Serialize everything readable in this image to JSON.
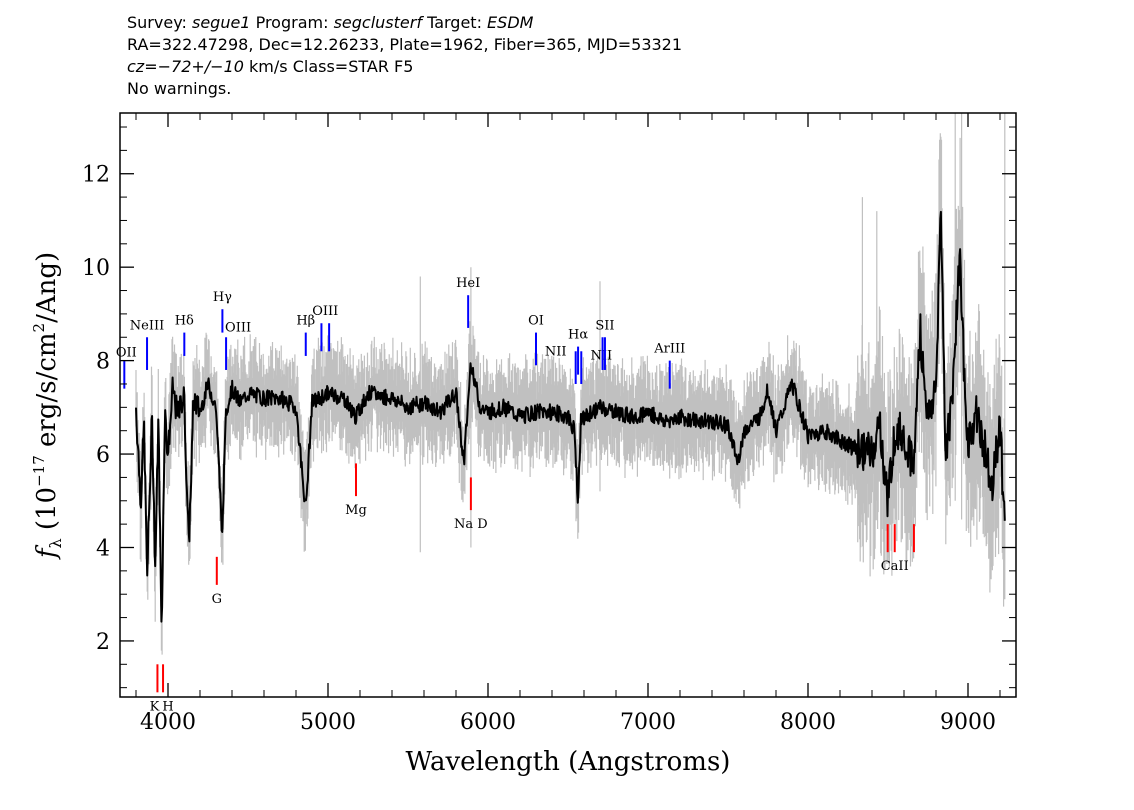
{
  "header": {
    "survey_label": "Survey:",
    "survey": "segue1",
    "program_label": "Program:",
    "program": "segclusterf",
    "target_label": "Target:",
    "target": "ESDM",
    "line2": "RA=322.47298, Dec=12.26233, Plate=1962, Fiber=365, MJD=53321",
    "cz_value": "cz=−72+/−10",
    "cz_rest": "km/s Class=STAR F5",
    "warnings": "No warnings."
  },
  "chart_data": {
    "type": "line",
    "xlabel": "Wavelength (Angstroms)",
    "ylabel": "f_λ (10^-17 erg/s/cm^2/Ang)",
    "xlim": [
      3700,
      9300
    ],
    "ylim": [
      0.8,
      13.3
    ],
    "xticks": [
      4000,
      5000,
      6000,
      7000,
      8000,
      9000
    ],
    "yticks": [
      2,
      4,
      6,
      8,
      10,
      12
    ],
    "colors": {
      "flux": "#000000",
      "error_band": "#c0c0c0",
      "emission": "#0000ff",
      "absorption": "#ff0000"
    },
    "series": [
      {
        "x": [
          3800,
          3830,
          3850,
          3870,
          3900,
          3920,
          3940,
          3960,
          3980,
          4000,
          4030,
          4060,
          4100,
          4130,
          4160,
          4200,
          4250,
          4300,
          4340,
          4360,
          4400,
          4450,
          4500,
          4600,
          4700,
          4800,
          4861,
          4900,
          5000,
          5100,
          5175,
          5250,
          5400,
          5500,
          5600,
          5700,
          5800,
          5850,
          5893,
          5950,
          6000,
          6100,
          6200,
          6300,
          6400,
          6500,
          6540,
          6563,
          6580,
          6650,
          6700,
          6800,
          6900,
          7000,
          7100,
          7200,
          7300,
          7400,
          7500,
          7560,
          7600,
          7700,
          7750,
          7800,
          7900,
          8000,
          8100,
          8200,
          8300,
          8400,
          8450,
          8498,
          8542,
          8600,
          8662,
          8700,
          8750,
          8800,
          8830,
          8860,
          8900,
          8950,
          8980,
          9000,
          9050,
          9100,
          9150,
          9200,
          9230
        ],
        "y": [
          7.0,
          5.0,
          6.6,
          3.4,
          6.8,
          3.6,
          6.7,
          2.2,
          6.9,
          6.0,
          7.4,
          6.8,
          7.3,
          4.0,
          7.2,
          6.9,
          7.5,
          7.0,
          4.2,
          6.9,
          7.4,
          7.1,
          7.3,
          7.2,
          7.2,
          7.0,
          4.8,
          7.1,
          7.3,
          7.2,
          6.8,
          7.3,
          7.2,
          7.0,
          7.1,
          6.9,
          7.3,
          5.8,
          8.0,
          7.0,
          6.9,
          7.0,
          6.8,
          6.9,
          6.9,
          6.8,
          6.5,
          5.0,
          6.7,
          6.9,
          7.0,
          6.9,
          6.8,
          6.9,
          6.7,
          6.8,
          6.7,
          6.7,
          6.6,
          5.8,
          6.5,
          6.8,
          7.4,
          6.5,
          7.5,
          6.4,
          6.5,
          6.3,
          6.1,
          6.0,
          6.6,
          5.0,
          6.5,
          6.4,
          5.7,
          8.7,
          6.7,
          7.4,
          11.4,
          6.0,
          7.2,
          10.4,
          7.2,
          6.2,
          6.9,
          6.2,
          5.4,
          6.6,
          4.5
        ]
      }
    ],
    "lines": [
      {
        "label": "OII",
        "wl": 3727,
        "y1": 7.4,
        "y2": 8.0,
        "kind": "emission"
      },
      {
        "label": "NeIII",
        "wl": 3869,
        "y1": 7.8,
        "y2": 8.5,
        "kind": "emission"
      },
      {
        "label": "Hδ",
        "wl": 4102,
        "y1": 8.1,
        "y2": 8.6,
        "kind": "emission"
      },
      {
        "label": "Hγ",
        "wl": 4340,
        "y1": 8.6,
        "y2": 9.1,
        "kind": "emission"
      },
      {
        "label": "OIII",
        "wl": 4363,
        "y1": 7.8,
        "y2": 8.5,
        "kind": "emission"
      },
      {
        "label": "Hβ",
        "wl": 4861,
        "y1": 8.1,
        "y2": 8.6,
        "kind": "emission"
      },
      {
        "label": "OIII",
        "wl": 4959,
        "y1": 8.2,
        "y2": 8.8,
        "kind": "emission"
      },
      {
        "label": "OIII",
        "wl": 5007,
        "y1": 8.2,
        "y2": 8.8,
        "kind": "emission"
      },
      {
        "label": "HeI",
        "wl": 5876,
        "y1": 8.7,
        "y2": 9.4,
        "kind": "emission"
      },
      {
        "label": "OI",
        "wl": 6300,
        "y1": 7.9,
        "y2": 8.6,
        "kind": "emission"
      },
      {
        "label": "NII",
        "wl": 6548,
        "y1": 7.5,
        "y2": 8.2,
        "kind": "emission"
      },
      {
        "label": "Hα",
        "wl": 6563,
        "y1": 7.7,
        "y2": 8.3,
        "kind": "emission"
      },
      {
        "label": "NII",
        "wl": 6583,
        "y1": 7.5,
        "y2": 8.2,
        "kind": "emission"
      },
      {
        "label": "SII",
        "wl": 6716,
        "y1": 7.8,
        "y2": 8.5,
        "kind": "emission"
      },
      {
        "label": "SII",
        "wl": 6731,
        "y1": 7.8,
        "y2": 8.5,
        "kind": "emission"
      },
      {
        "label": "ArIII",
        "wl": 7136,
        "y1": 7.4,
        "y2": 8.0,
        "kind": "emission"
      },
      {
        "label": "K",
        "wl": 3934,
        "y1": 0.9,
        "y2": 1.5,
        "kind": "absorption"
      },
      {
        "label": "H",
        "wl": 3969,
        "y1": 0.9,
        "y2": 1.5,
        "kind": "absorption"
      },
      {
        "label": "G",
        "wl": 4305,
        "y1": 3.2,
        "y2": 3.8,
        "kind": "absorption"
      },
      {
        "label": "Mg",
        "wl": 5175,
        "y1": 5.1,
        "y2": 5.8,
        "kind": "absorption"
      },
      {
        "label": "Na D",
        "wl": 5893,
        "y1": 4.8,
        "y2": 5.5,
        "kind": "absorption"
      },
      {
        "label": "CaII",
        "wl": 8498,
        "y1": 3.9,
        "y2": 4.5,
        "kind": "absorption"
      },
      {
        "label": "CaII",
        "wl": 8542,
        "y1": 3.9,
        "y2": 4.5,
        "kind": "absorption"
      },
      {
        "label": "CaII",
        "wl": 8662,
        "y1": 3.9,
        "y2": 4.5,
        "kind": "absorption"
      }
    ]
  }
}
